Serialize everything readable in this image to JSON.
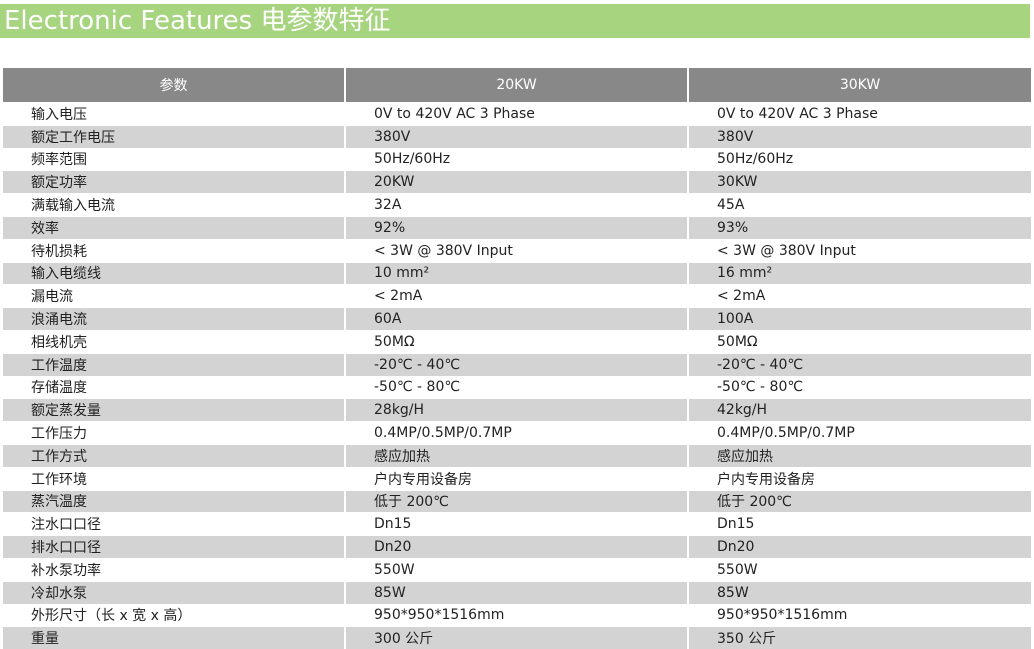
{
  "banner": {
    "title": "Electronic Features 电参数特征"
  },
  "table": {
    "headers": [
      "参数",
      "20KW",
      "30KW"
    ],
    "rows": [
      [
        "输入电压",
        "0V to 420V AC 3 Phase",
        "0V to 420V AC 3 Phase"
      ],
      [
        "额定工作电压",
        "380V",
        "380V"
      ],
      [
        "频率范围",
        "50Hz/60Hz",
        "50Hz/60Hz"
      ],
      [
        "额定功率",
        "20KW",
        "30KW"
      ],
      [
        "满载输入电流",
        "32A",
        "45A"
      ],
      [
        "效率",
        "92%",
        "93%"
      ],
      [
        "待机损耗",
        "< 3W @ 380V Input",
        "< 3W @ 380V Input"
      ],
      [
        "输入电缆线",
        "10 mm²",
        "16 mm²"
      ],
      [
        "漏电流",
        "< 2mA",
        "< 2mA"
      ],
      [
        "浪涌电流",
        "60A",
        "100A"
      ],
      [
        "相线机壳",
        "50MΩ",
        "50MΩ"
      ],
      [
        "工作温度",
        "-20℃ - 40℃",
        "-20℃ - 40℃"
      ],
      [
        "存储温度",
        "-50℃ - 80℃",
        "-50℃ - 80℃"
      ],
      [
        "额定蒸发量",
        "28kg/H",
        "42kg/H"
      ],
      [
        "工作压力",
        "0.4MP/0.5MP/0.7MP",
        "0.4MP/0.5MP/0.7MP"
      ],
      [
        "工作方式",
        "感应加热",
        "感应加热"
      ],
      [
        "工作环境",
        "户内专用设备房",
        "户内专用设备房"
      ],
      [
        "蒸汽温度",
        "低于 200℃",
        "低于 200℃"
      ],
      [
        "注水口口径",
        "Dn15",
        "Dn15"
      ],
      [
        "排水口口径",
        "Dn20",
        "Dn20"
      ],
      [
        "补水泵功率",
        "550W",
        "550W"
      ],
      [
        "冷却水泵",
        "85W",
        "85W"
      ],
      [
        "外形尺寸（长 x 宽 x 高）",
        "950*950*1516mm",
        "950*950*1516mm"
      ],
      [
        "重量",
        "300 公斤",
        "350 公斤"
      ]
    ]
  },
  "colors": {
    "banner": "#a7d47f",
    "header_bg": "#888888",
    "row_alt": "#d3d3d3",
    "text": "#222222"
  }
}
